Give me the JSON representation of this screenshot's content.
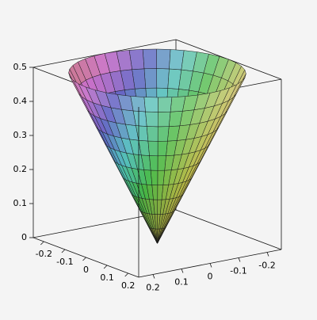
{
  "chart_data": {
    "type": "surface",
    "xlim": [
      -0.25,
      0.25
    ],
    "ylim": [
      -0.25,
      0.25
    ],
    "zlim": [
      0,
      0.5
    ],
    "xticks": [
      -0.2,
      -0.1,
      0,
      0.1,
      0.2
    ],
    "yticks": [
      -0.2,
      -0.1,
      0,
      0.1,
      0.2
    ],
    "zticks": [
      0,
      0.1,
      0.2,
      0.3,
      0.4,
      0.5
    ],
    "surface": {
      "r": [
        0,
        0.025,
        0.05,
        0.075,
        0.1,
        0.125,
        0.15,
        0.175,
        0.2,
        0.225,
        0.25
      ],
      "z": [
        0,
        0.05,
        0.1,
        0.15,
        0.2,
        0.25,
        0.3,
        0.35,
        0.4,
        0.45,
        0.5
      ]
    },
    "grid": false
  }
}
